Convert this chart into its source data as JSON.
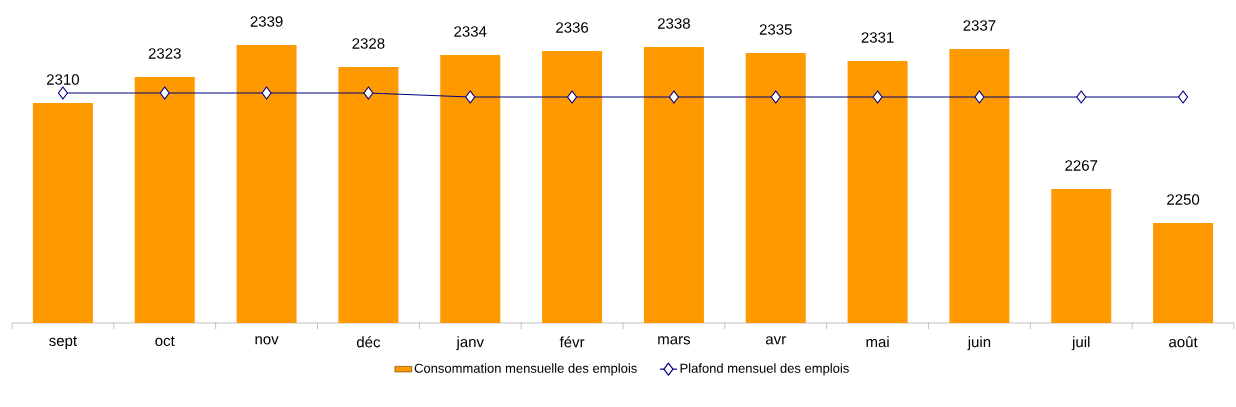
{
  "chart_data": {
    "type": "bar",
    "categories": [
      "sept",
      "oct",
      "nov",
      "déc",
      "janv",
      "févr",
      "mars",
      "avr",
      "mai",
      "juin",
      "juil",
      "août"
    ],
    "series": [
      {
        "name": "Consommation mensuelle des emplois",
        "color": "#ff9900",
        "values": [
          2310,
          2323,
          2339,
          2328,
          2334,
          2336,
          2338,
          2335,
          2331,
          2337,
          2267,
          2250
        ],
        "value_labels": [
          "2310",
          "2323",
          "2339",
          "2328",
          "2334",
          "2336",
          "2338",
          "2335",
          "2331",
          "2337",
          "2267",
          "2250"
        ]
      },
      {
        "name": "Plafond mensuel des emplois",
        "type": "line",
        "color": "#000080",
        "marker": "diamond",
        "values": [
          2315,
          2315,
          2315,
          2315,
          2313,
          2313,
          2313,
          2313,
          2313,
          2313,
          2313,
          2313
        ]
      }
    ],
    "ylim": [
      2200,
      2339
    ],
    "tick_labels": "x",
    "legend": "bottom"
  }
}
